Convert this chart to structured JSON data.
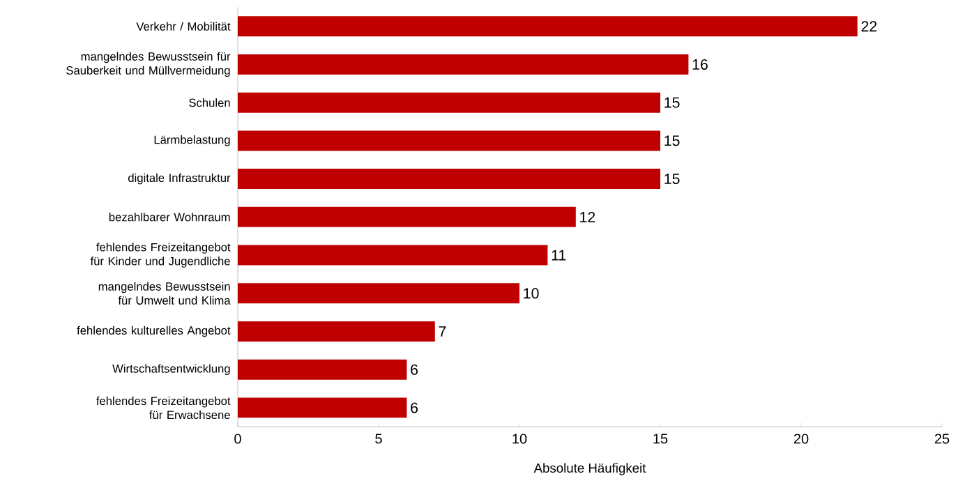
{
  "chart_data": {
    "type": "bar",
    "orientation": "horizontal",
    "xlabel": "Absolute Häufigkeit",
    "categories": [
      "Verkehr / Mobilität",
      "mangelndes Bewusstsein für Sauberkeit und Müllvermeidung",
      "Schulen",
      "Lärmbelastung",
      "digitale Infrastruktur",
      "bezahlbarer Wohnraum",
      "fehlendes Freizeitangebot für Kinder und Jugendliche",
      "mangelndes Bewusstsein für Umwelt und Klima",
      "fehlendes kulturelles Angebot",
      "Wirtschaftsentwicklung",
      "fehlendes Freizeitangebot für Erwachsene"
    ],
    "values": [
      22,
      16,
      15,
      15,
      15,
      12,
      11,
      10,
      7,
      6,
      6
    ],
    "color": "#c00000",
    "xlim": [
      0,
      25
    ],
    "xticks": [
      0,
      5,
      10,
      15,
      20,
      25
    ],
    "data_labels": true,
    "grid": false
  }
}
